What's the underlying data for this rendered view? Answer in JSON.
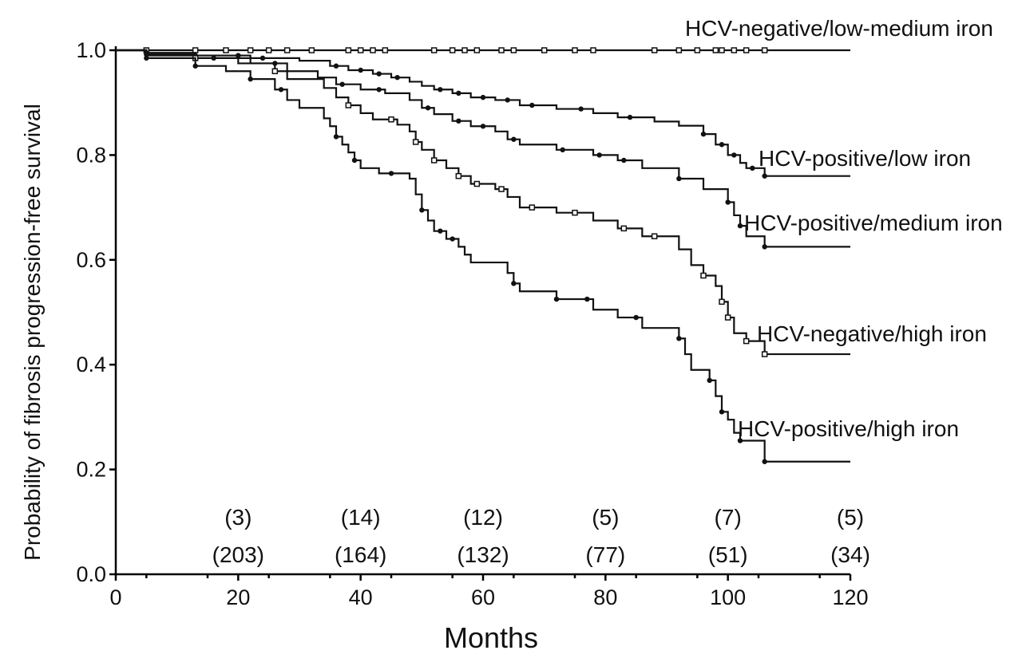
{
  "chart_data": {
    "type": "line",
    "subtype": "kaplan-meier",
    "title": "",
    "xlabel": "Months",
    "ylabel": "Probability of fibrosis progression-free survival",
    "xlim": [
      0,
      120
    ],
    "ylim": [
      0.0,
      1.0
    ],
    "x_ticks": [
      0,
      20,
      40,
      60,
      80,
      100,
      120
    ],
    "y_ticks": [
      0.0,
      0.2,
      0.4,
      0.6,
      0.8,
      1.0
    ],
    "x_tick_labels": [
      "0",
      "20",
      "40",
      "60",
      "80",
      "100",
      "120"
    ],
    "y_tick_labels": [
      "0.0",
      "0.2",
      "0.4",
      "0.6",
      "0.8",
      "1.0"
    ],
    "grid": false,
    "series": [
      {
        "name": "HCV-negative/low-medium iron",
        "censor_style": "open",
        "steps": [
          [
            0,
            1.0
          ],
          [
            120,
            1.0
          ]
        ],
        "censor_x": [
          5,
          13,
          18,
          22,
          25,
          28,
          32,
          38,
          40,
          42,
          44,
          52,
          55,
          57,
          59,
          63,
          65,
          70,
          75,
          78,
          88,
          92,
          95,
          98,
          99,
          101,
          103,
          106
        ]
      },
      {
        "name": "HCV-positive/low iron",
        "censor_style": "filled",
        "steps": [
          [
            0,
            1.0
          ],
          [
            5,
            0.995
          ],
          [
            13,
            0.99
          ],
          [
            22,
            0.985
          ],
          [
            30,
            0.98
          ],
          [
            35,
            0.97
          ],
          [
            38,
            0.962
          ],
          [
            42,
            0.955
          ],
          [
            45,
            0.948
          ],
          [
            48,
            0.94
          ],
          [
            50,
            0.932
          ],
          [
            52,
            0.925
          ],
          [
            55,
            0.918
          ],
          [
            58,
            0.91
          ],
          [
            62,
            0.905
          ],
          [
            66,
            0.895
          ],
          [
            72,
            0.888
          ],
          [
            78,
            0.88
          ],
          [
            82,
            0.872
          ],
          [
            88,
            0.864
          ],
          [
            92,
            0.856
          ],
          [
            96,
            0.84
          ],
          [
            98,
            0.82
          ],
          [
            100,
            0.8
          ],
          [
            102,
            0.785
          ],
          [
            103,
            0.775
          ],
          [
            106,
            0.76
          ],
          [
            120,
            0.76
          ]
        ],
        "censor_x": [
          5,
          13,
          20,
          24,
          36,
          40,
          43,
          46,
          53,
          56,
          60,
          64,
          68,
          76,
          84,
          96,
          99,
          101,
          104,
          106
        ]
      },
      {
        "name": "HCV-positive/medium iron",
        "censor_style": "filled",
        "steps": [
          [
            0,
            1.0
          ],
          [
            5,
            0.992
          ],
          [
            13,
            0.985
          ],
          [
            22,
            0.975
          ],
          [
            28,
            0.96
          ],
          [
            33,
            0.948
          ],
          [
            36,
            0.935
          ],
          [
            40,
            0.925
          ],
          [
            44,
            0.918
          ],
          [
            48,
            0.905
          ],
          [
            50,
            0.89
          ],
          [
            52,
            0.878
          ],
          [
            55,
            0.865
          ],
          [
            58,
            0.855
          ],
          [
            62,
            0.845
          ],
          [
            64,
            0.83
          ],
          [
            66,
            0.82
          ],
          [
            72,
            0.81
          ],
          [
            78,
            0.8
          ],
          [
            82,
            0.79
          ],
          [
            86,
            0.775
          ],
          [
            92,
            0.755
          ],
          [
            96,
            0.735
          ],
          [
            100,
            0.71
          ],
          [
            101,
            0.685
          ],
          [
            102,
            0.665
          ],
          [
            103,
            0.645
          ],
          [
            106,
            0.625
          ],
          [
            120,
            0.625
          ]
        ],
        "censor_x": [
          5,
          16,
          26,
          37,
          43,
          51,
          56,
          60,
          65,
          73,
          79,
          83,
          92,
          100,
          102,
          106
        ]
      },
      {
        "name": "HCV-negative/high iron",
        "censor_style": "open",
        "steps": [
          [
            0,
            1.0
          ],
          [
            5,
            0.99
          ],
          [
            13,
            0.985
          ],
          [
            20,
            0.975
          ],
          [
            26,
            0.96
          ],
          [
            28,
            0.945
          ],
          [
            34,
            0.928
          ],
          [
            36,
            0.91
          ],
          [
            38,
            0.895
          ],
          [
            40,
            0.88
          ],
          [
            42,
            0.868
          ],
          [
            46,
            0.858
          ],
          [
            48,
            0.845
          ],
          [
            49,
            0.825
          ],
          [
            50,
            0.81
          ],
          [
            52,
            0.79
          ],
          [
            54,
            0.775
          ],
          [
            56,
            0.76
          ],
          [
            58,
            0.745
          ],
          [
            62,
            0.735
          ],
          [
            64,
            0.72
          ],
          [
            66,
            0.7
          ],
          [
            72,
            0.69
          ],
          [
            78,
            0.675
          ],
          [
            82,
            0.66
          ],
          [
            86,
            0.645
          ],
          [
            92,
            0.62
          ],
          [
            94,
            0.59
          ],
          [
            96,
            0.57
          ],
          [
            98,
            0.55
          ],
          [
            99,
            0.52
          ],
          [
            100,
            0.49
          ],
          [
            101,
            0.46
          ],
          [
            103,
            0.445
          ],
          [
            106,
            0.42
          ],
          [
            120,
            0.42
          ]
        ],
        "censor_x": [
          13,
          26,
          38,
          45,
          49,
          52,
          56,
          59,
          63,
          68,
          75,
          83,
          88,
          96,
          99,
          100,
          103,
          106
        ]
      },
      {
        "name": "HCV-positive/high iron",
        "censor_style": "filled",
        "steps": [
          [
            0,
            1.0
          ],
          [
            5,
            0.985
          ],
          [
            13,
            0.97
          ],
          [
            18,
            0.96
          ],
          [
            22,
            0.945
          ],
          [
            26,
            0.925
          ],
          [
            28,
            0.905
          ],
          [
            30,
            0.89
          ],
          [
            34,
            0.87
          ],
          [
            35,
            0.855
          ],
          [
            36,
            0.835
          ],
          [
            37,
            0.82
          ],
          [
            38,
            0.805
          ],
          [
            39,
            0.79
          ],
          [
            40,
            0.775
          ],
          [
            43,
            0.765
          ],
          [
            48,
            0.755
          ],
          [
            49,
            0.725
          ],
          [
            50,
            0.695
          ],
          [
            51,
            0.675
          ],
          [
            52,
            0.655
          ],
          [
            54,
            0.64
          ],
          [
            56,
            0.625
          ],
          [
            57,
            0.61
          ],
          [
            58,
            0.595
          ],
          [
            64,
            0.575
          ],
          [
            65,
            0.555
          ],
          [
            66,
            0.54
          ],
          [
            72,
            0.525
          ],
          [
            78,
            0.505
          ],
          [
            82,
            0.49
          ],
          [
            86,
            0.47
          ],
          [
            92,
            0.45
          ],
          [
            93,
            0.42
          ],
          [
            94,
            0.39
          ],
          [
            97,
            0.37
          ],
          [
            98,
            0.34
          ],
          [
            99,
            0.31
          ],
          [
            100,
            0.295
          ],
          [
            101,
            0.27
          ],
          [
            102,
            0.255
          ],
          [
            106,
            0.215
          ],
          [
            120,
            0.215
          ]
        ],
        "censor_x": [
          5,
          13,
          22,
          27,
          36,
          39,
          45,
          50,
          53,
          55,
          65,
          72,
          77,
          85,
          92,
          97,
          99,
          102,
          106
        ]
      }
    ],
    "label_positions_hint": "series labels placed to the right of each curve near its end",
    "at_risk": {
      "x": [
        20,
        40,
        60,
        80,
        100,
        120
      ],
      "events": [
        "(3)",
        "(14)",
        "(12)",
        "(5)",
        "(7)",
        "(5)"
      ],
      "at_risk": [
        "(203)",
        "(164)",
        "(132)",
        "(77)",
        "(51)",
        "(34)"
      ]
    }
  }
}
